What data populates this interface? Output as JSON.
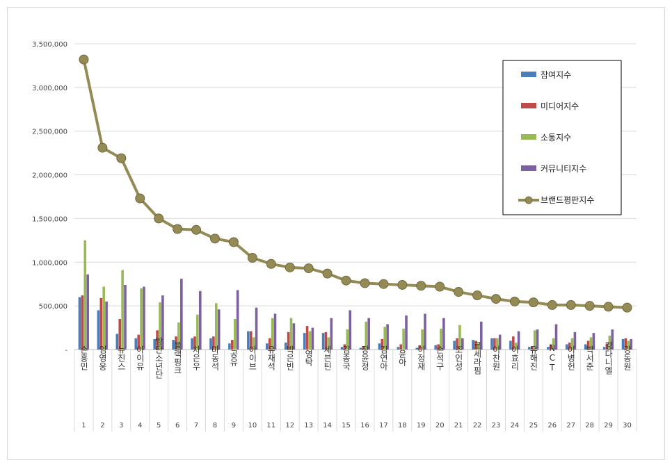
{
  "chart_data": {
    "type": "bar",
    "title": "",
    "xlabel": "",
    "ylabel": "",
    "ylim": [
      0,
      3500000
    ],
    "yticks": [
      "-",
      "500,000",
      "1,000,000",
      "1,500,000",
      "2,000,000",
      "2,500,000",
      "3,000,000",
      "3,500,000"
    ],
    "grid": true,
    "legend_position": "top-right",
    "categories": [
      "손흥민",
      "임영웅",
      "뉴진스",
      "아이유",
      "방탄소년단",
      "블랙핑크",
      "차은우",
      "마동석",
      "공유",
      "아이브",
      "유재석",
      "박은빈",
      "영탁",
      "세븐틴",
      "김종국",
      "장윤정",
      "김연아",
      "윤아",
      "이정재",
      "손석구",
      "조인성",
      "르세라핌",
      "이찬원",
      "이효리",
      "유해진",
      "NCT",
      "이병헌",
      "박서준",
      "강다니엘",
      "강동원"
    ],
    "ranks": [
      "1",
      "2",
      "3",
      "4",
      "5",
      "6",
      "7",
      "8",
      "9",
      "10",
      "11",
      "12",
      "13",
      "14",
      "15",
      "16",
      "17",
      "18",
      "19",
      "20",
      "21",
      "22",
      "23",
      "24",
      "25",
      "26",
      "27",
      "28",
      "29",
      "30"
    ],
    "series": [
      {
        "name": "참여지수",
        "kind": "bar",
        "color": "#4a7ebb",
        "values": [
          600000,
          450000,
          180000,
          130000,
          120000,
          110000,
          130000,
          130000,
          70000,
          210000,
          70000,
          80000,
          190000,
          190000,
          30000,
          20000,
          70000,
          30000,
          20000,
          50000,
          100000,
          110000,
          130000,
          100000,
          30000,
          30000,
          60000,
          60000,
          30000,
          120000
        ]
      },
      {
        "name": "미디어지수",
        "kind": "bar",
        "color": "#be4b48",
        "values": [
          620000,
          590000,
          350000,
          170000,
          220000,
          150000,
          150000,
          150000,
          110000,
          210000,
          130000,
          200000,
          270000,
          200000,
          60000,
          40000,
          120000,
          60000,
          50000,
          60000,
          130000,
          100000,
          130000,
          150000,
          40000,
          60000,
          80000,
          100000,
          70000,
          130000
        ]
      },
      {
        "name": "소통지수",
        "kind": "bar",
        "color": "#98b954",
        "values": [
          1250000,
          720000,
          910000,
          700000,
          540000,
          310000,
          400000,
          530000,
          350000,
          140000,
          360000,
          360000,
          210000,
          140000,
          230000,
          320000,
          260000,
          240000,
          230000,
          240000,
          280000,
          70000,
          130000,
          80000,
          220000,
          130000,
          130000,
          140000,
          160000,
          100000
        ]
      },
      {
        "name": "커뮤니티지수",
        "kind": "bar",
        "color": "#7d60a0",
        "values": [
          860000,
          550000,
          740000,
          720000,
          620000,
          810000,
          670000,
          460000,
          680000,
          480000,
          410000,
          300000,
          250000,
          360000,
          450000,
          360000,
          290000,
          390000,
          410000,
          360000,
          130000,
          320000,
          170000,
          210000,
          230000,
          290000,
          200000,
          190000,
          230000,
          120000
        ]
      },
      {
        "name": "브랜드평판지수",
        "kind": "line",
        "color": "#948a54",
        "values": [
          3320000,
          2310000,
          2190000,
          1730000,
          1500000,
          1380000,
          1370000,
          1270000,
          1230000,
          1050000,
          980000,
          940000,
          930000,
          870000,
          790000,
          760000,
          750000,
          740000,
          730000,
          720000,
          660000,
          620000,
          580000,
          550000,
          540000,
          510000,
          510000,
          500000,
          490000,
          480000
        ]
      }
    ]
  }
}
